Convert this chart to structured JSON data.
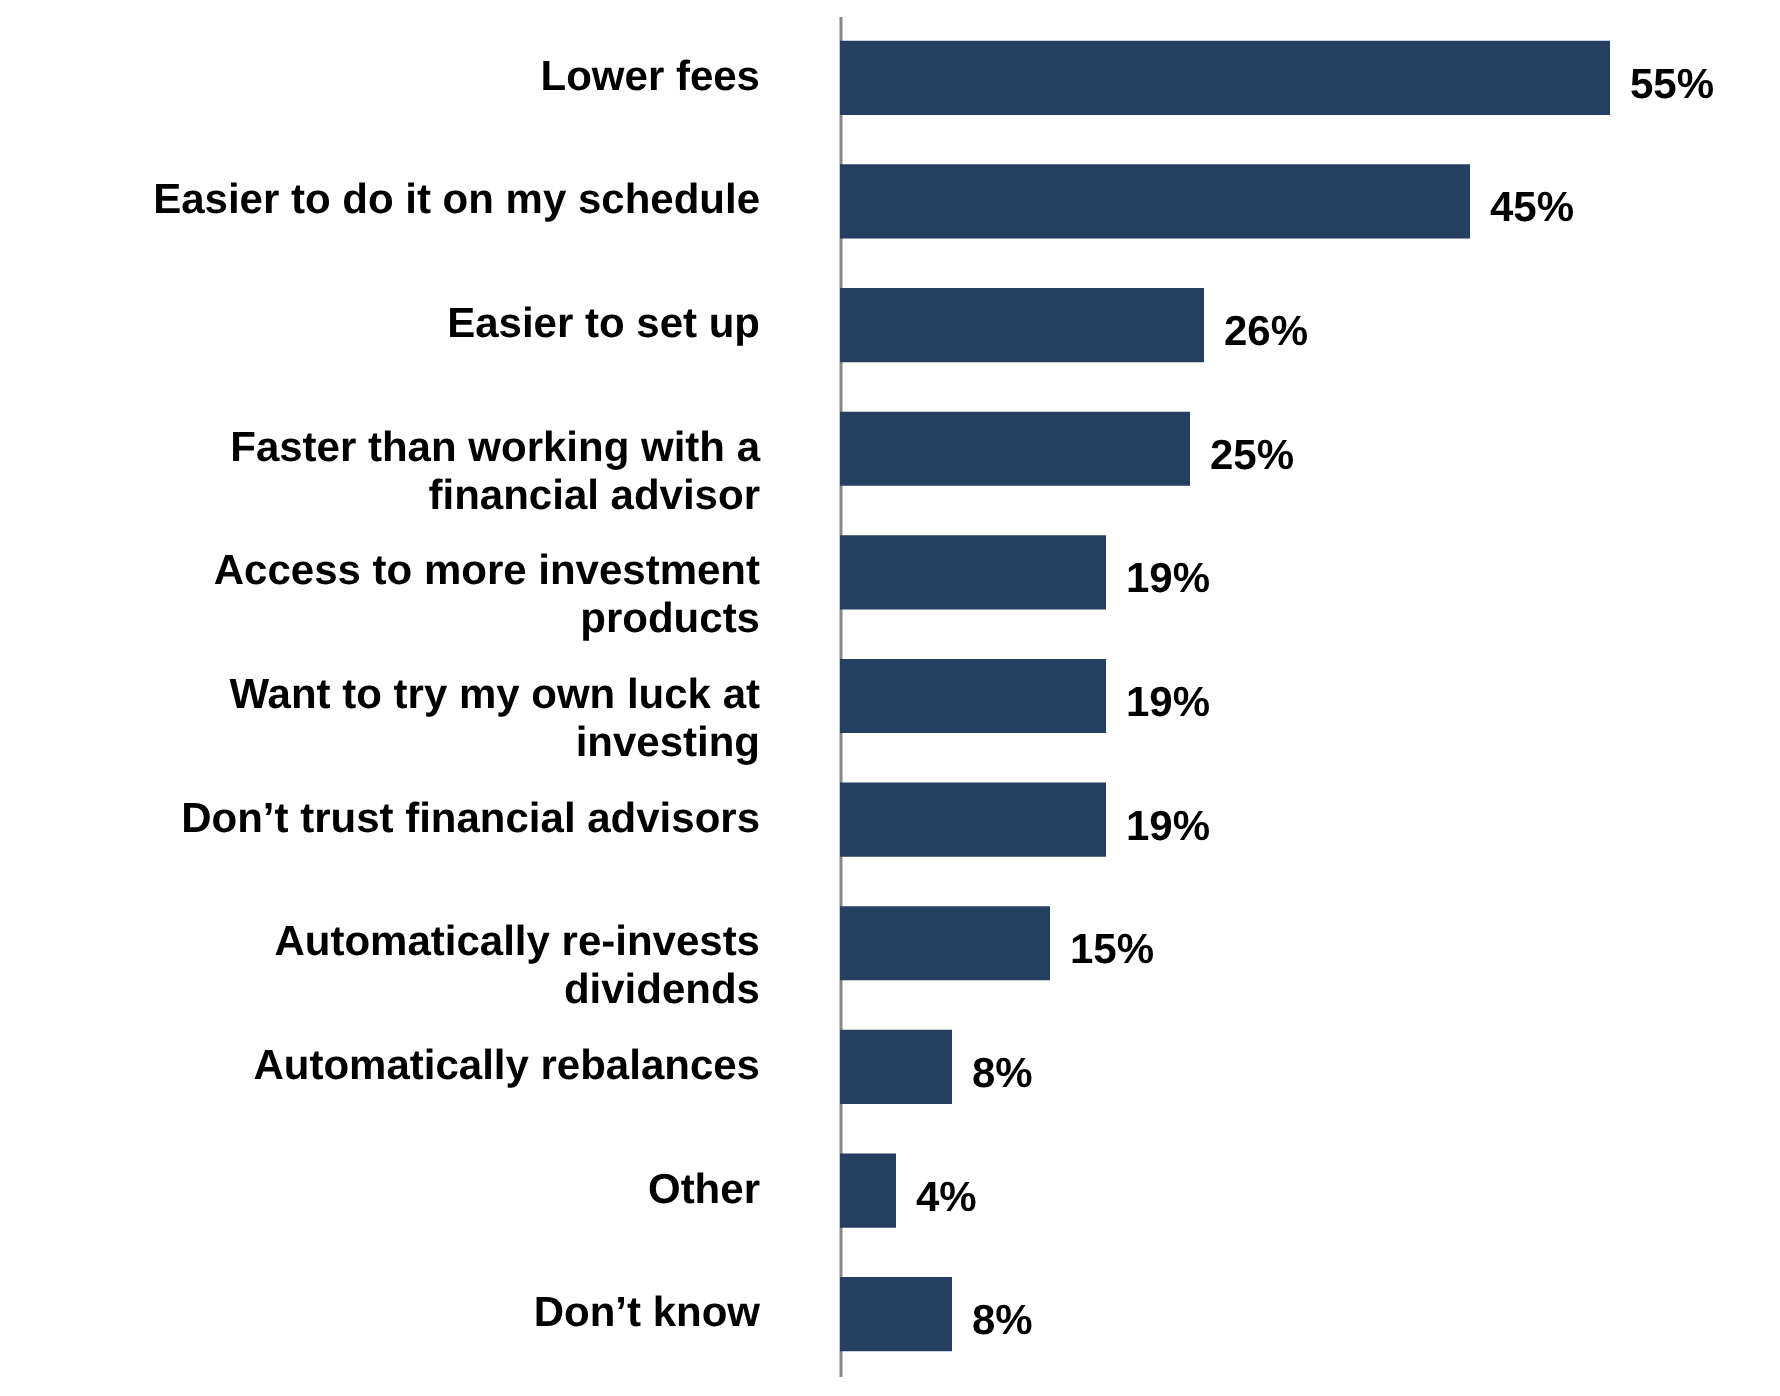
{
  "chart_data": {
    "type": "bar",
    "orientation": "horizontal",
    "categories": [
      "Lower fees",
      "Easier to do it on my schedule",
      "Easier to set up",
      "Faster than working with a financial advisor",
      "Access to more investment products",
      "Want to try my own luck at investing",
      "Don’t trust financial advisors",
      "Automatically re-invests dividends",
      "Automatically rebalances",
      "Other",
      "Don’t know"
    ],
    "values": [
      55,
      45,
      26,
      25,
      19,
      19,
      19,
      15,
      8,
      4,
      8
    ],
    "value_labels": [
      "55%",
      "45%",
      "26%",
      "25%",
      "19%",
      "19%",
      "19%",
      "15%",
      "8%",
      "4%",
      "8%"
    ],
    "color": "#243f60"
  }
}
